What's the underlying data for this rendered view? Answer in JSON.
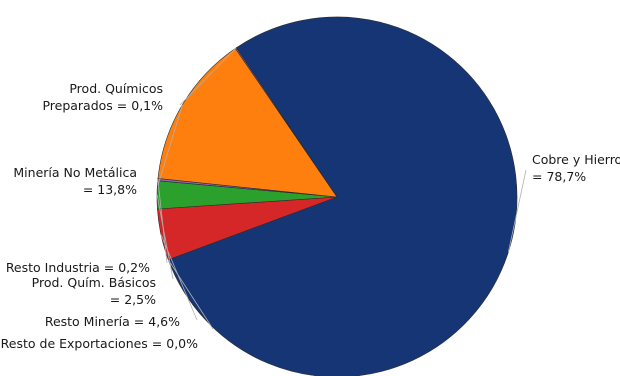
{
  "chart_data": {
    "type": "pie",
    "start_angle_deg": 236,
    "direction": "clockwise",
    "slices": [
      {
        "name": "Cobre y Hierro",
        "value": 78.7,
        "color": "#163574",
        "label_lines": [
          "Cobre y Hierro",
          "= 78,7%"
        ]
      },
      {
        "name": "Resto de Exportaciones",
        "value": 0.0,
        "color": "#163574",
        "label_lines": [
          "Resto de Exportaciones = 0,0%"
        ]
      },
      {
        "name": "Resto Minería",
        "value": 4.6,
        "color": "#d62728",
        "label_lines": [
          "Resto Minería = 4,6%"
        ]
      },
      {
        "name": "Prod. Quím. Básicos",
        "value": 2.5,
        "color": "#2ca02c",
        "label_lines": [
          "Prod. Quím. Básicos",
          "= 2,5%"
        ]
      },
      {
        "name": "Resto Industria",
        "value": 0.2,
        "color": "#9467bd",
        "label_lines": [
          "Resto Industria = 0,2%"
        ]
      },
      {
        "name": "Minería No Metálica",
        "value": 13.8,
        "color": "#ff7f0e",
        "label_lines": [
          "Minería No Metálica",
          "= 13,8%"
        ]
      },
      {
        "name": "Prod. Químicos Preparados",
        "value": 0.1,
        "color": "#9467bd",
        "label_lines": [
          "Prod. Químicos",
          "Preparados = 0,1%"
        ]
      }
    ]
  }
}
